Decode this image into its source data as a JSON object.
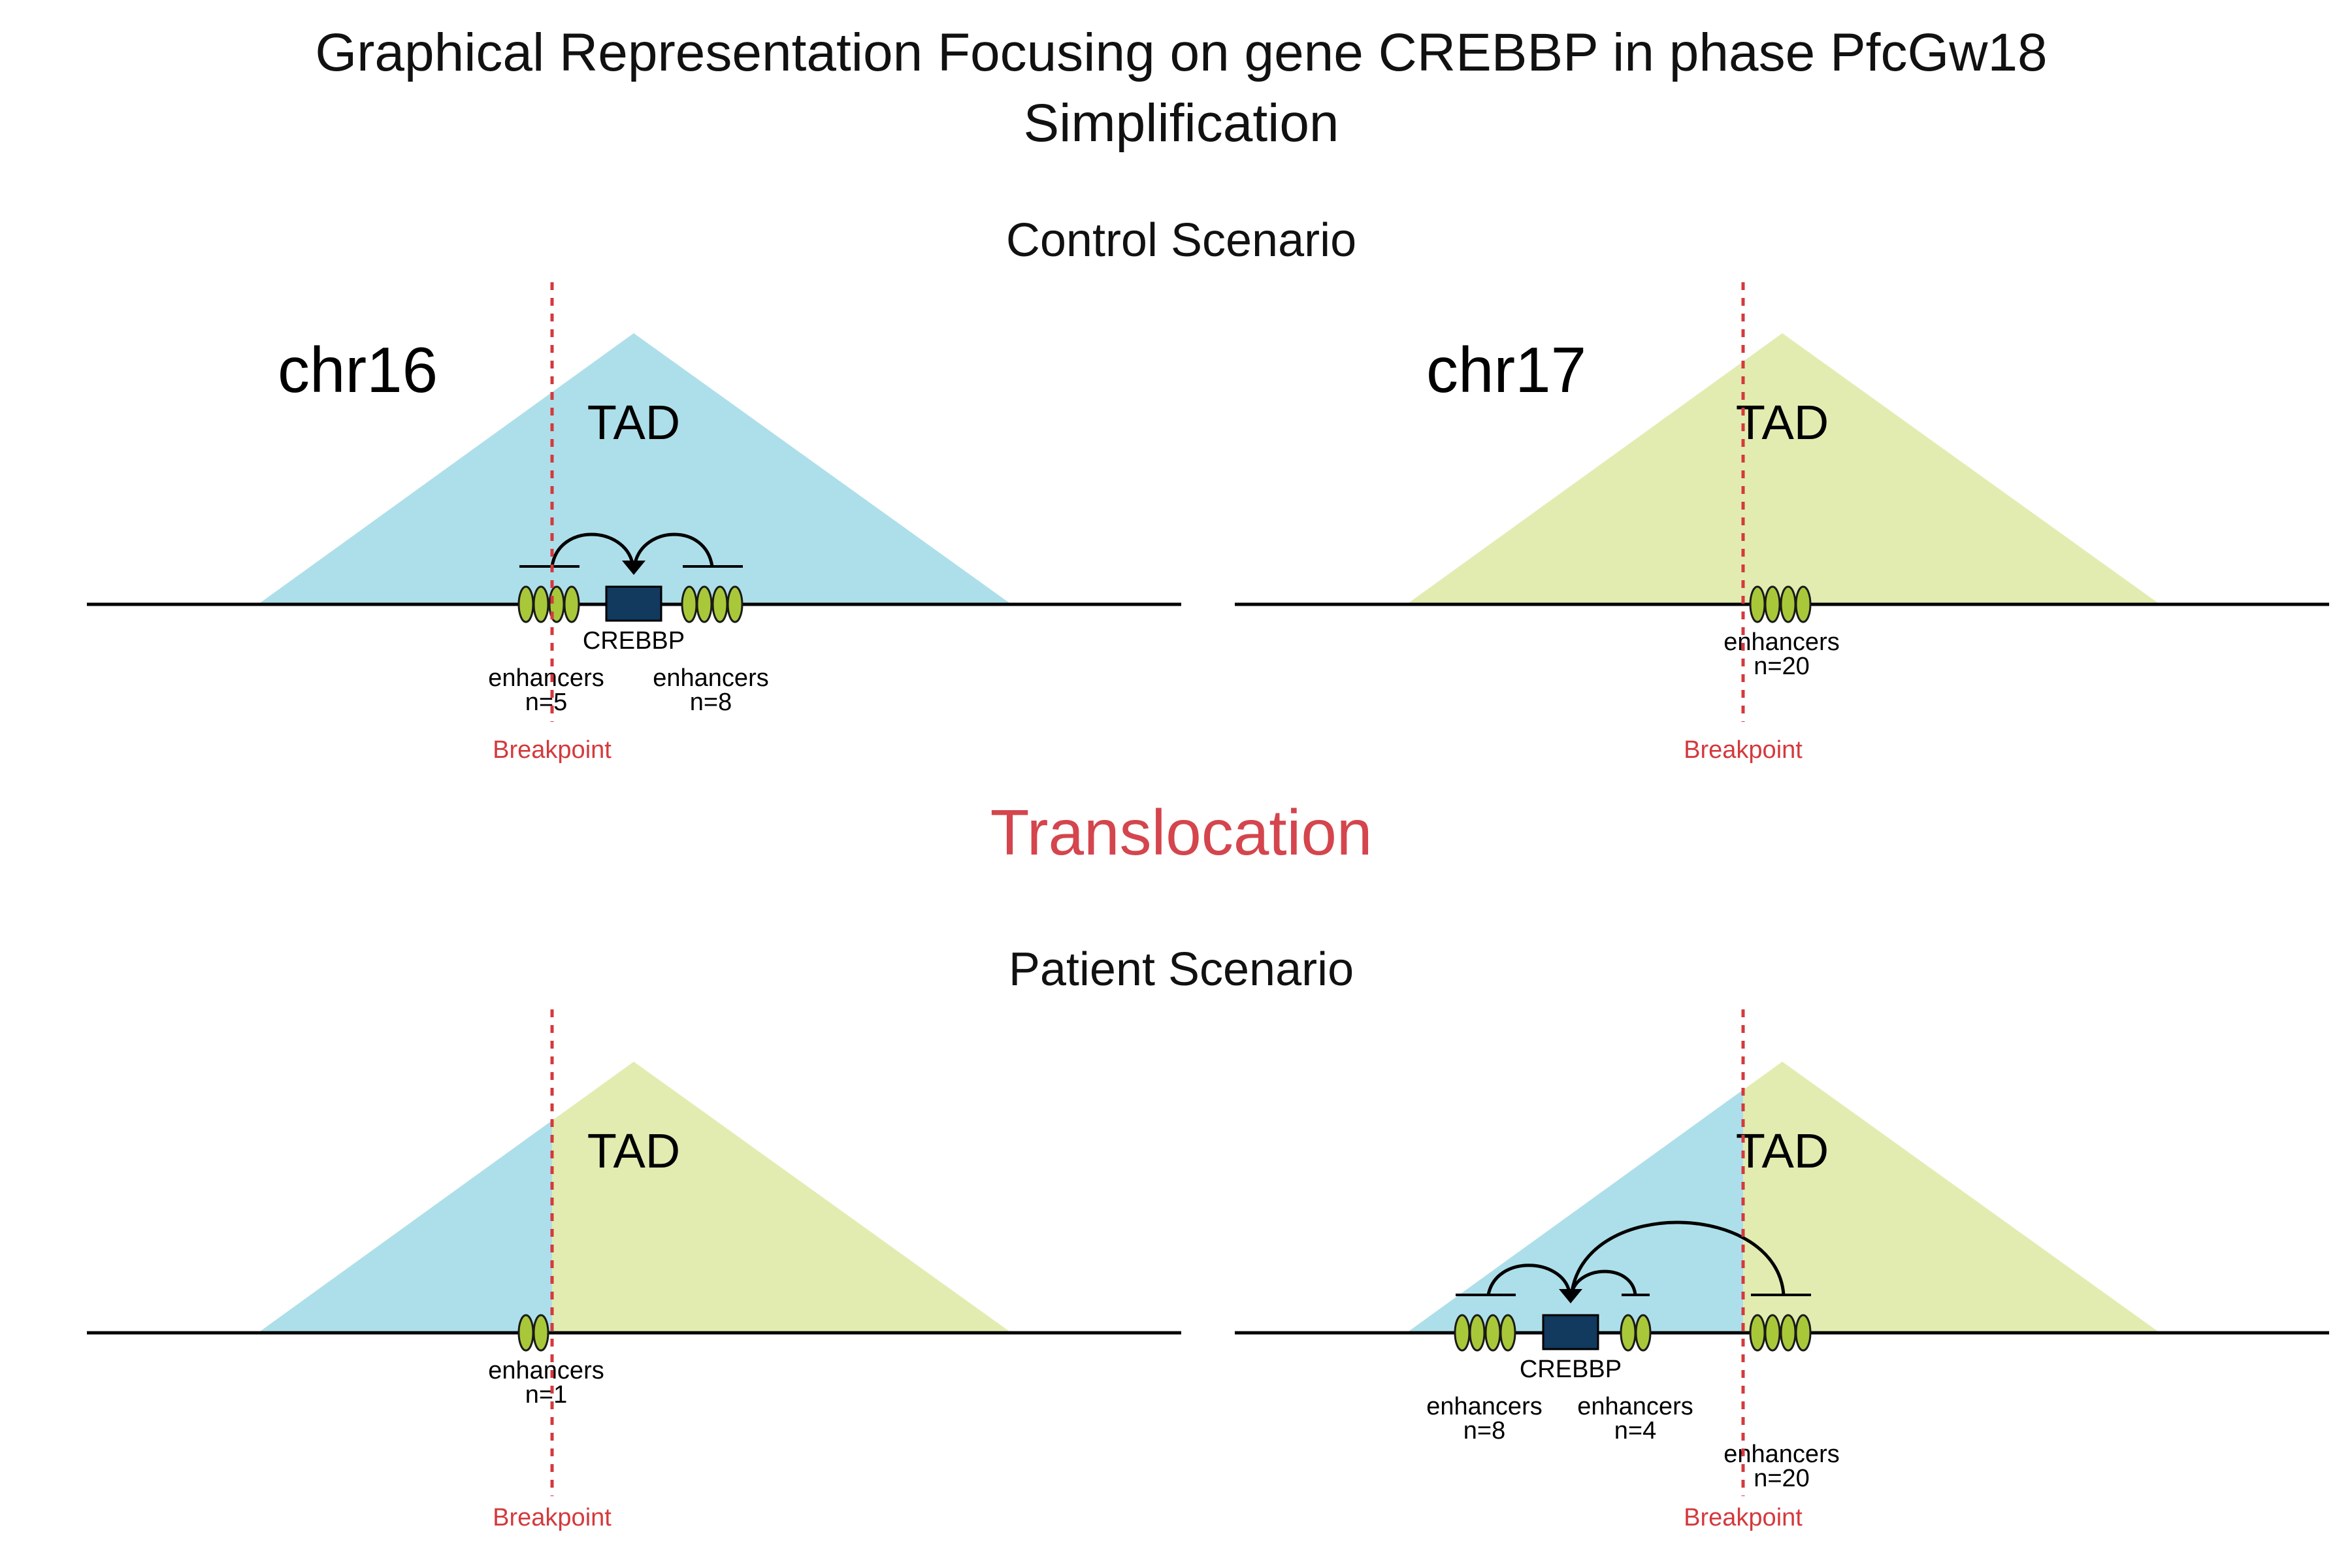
{
  "title_line1": "Graphical Representation Focusing on gene CREBBP in phase PfcGw18",
  "title_line2": "Simplification",
  "control_label": "Control Scenario",
  "translocation_label": "Translocation",
  "patient_label": "Patient Scenario",
  "chr_left": "chr16",
  "chr_right": "chr17",
  "tad_label": "TAD",
  "gene_label": "CREBBP",
  "enhancers_label": "enhancers",
  "breakpoint_label": "Breakpoint",
  "counts": {
    "control_left_a": "n=5",
    "control_left_b": "n=8",
    "control_right": "n=20",
    "patient_left": "n=1",
    "patient_right_a": "n=8",
    "patient_right_b": "n=4",
    "patient_right_c": "n=20"
  },
  "colors": {
    "chr16_tad": "#ADDFEA",
    "chr17_tad": "#E2ECB1",
    "enhancer": "#A8C83A",
    "gene": "#12395E",
    "breakpoint": "#D4393D",
    "translocation": "#D4454D"
  }
}
